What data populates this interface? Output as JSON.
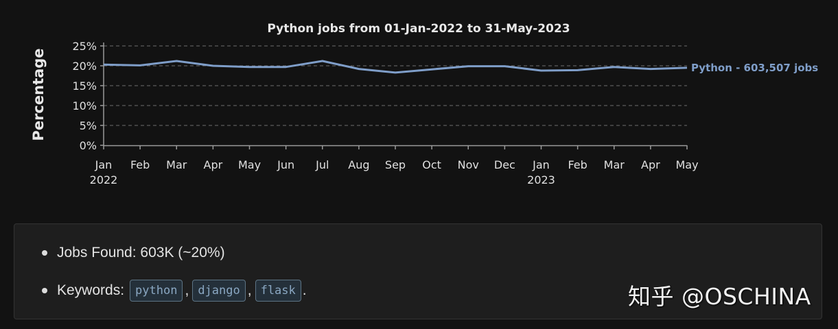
{
  "chart_data": {
    "type": "line",
    "title": "Python jobs from 01-Jan-2022 to 31-May-2023",
    "xlabel": "",
    "ylabel": "Percentage",
    "ylim": [
      0,
      25
    ],
    "yticks": [
      "0%",
      "5%",
      "10%",
      "15%",
      "20%",
      "25%"
    ],
    "grid": true,
    "categories": [
      "Jan",
      "Feb",
      "Mar",
      "Apr",
      "May",
      "Jun",
      "Jul",
      "Aug",
      "Sep",
      "Oct",
      "Nov",
      "Dec",
      "Jan",
      "Feb",
      "Mar",
      "Apr",
      "May"
    ],
    "year_labels": [
      {
        "index": 0,
        "label": "2022"
      },
      {
        "index": 12,
        "label": "2023"
      }
    ],
    "series": [
      {
        "name": "Python - 603,507 jobs",
        "color": "#7f9ec9",
        "values": [
          20.3,
          20.1,
          21.2,
          20.0,
          19.7,
          19.7,
          21.2,
          19.2,
          18.3,
          19.1,
          19.9,
          19.9,
          18.8,
          18.9,
          19.7,
          19.2,
          19.5
        ]
      }
    ],
    "legend_position": "inline-right"
  },
  "summary": {
    "jobs_found": "Jobs Found: 603K (~20%)",
    "keywords_label": "Keywords:",
    "keywords": [
      "python",
      "django",
      "flask"
    ],
    "comma": ",",
    "period": "."
  },
  "watermark": "知乎 @OSCHINA"
}
